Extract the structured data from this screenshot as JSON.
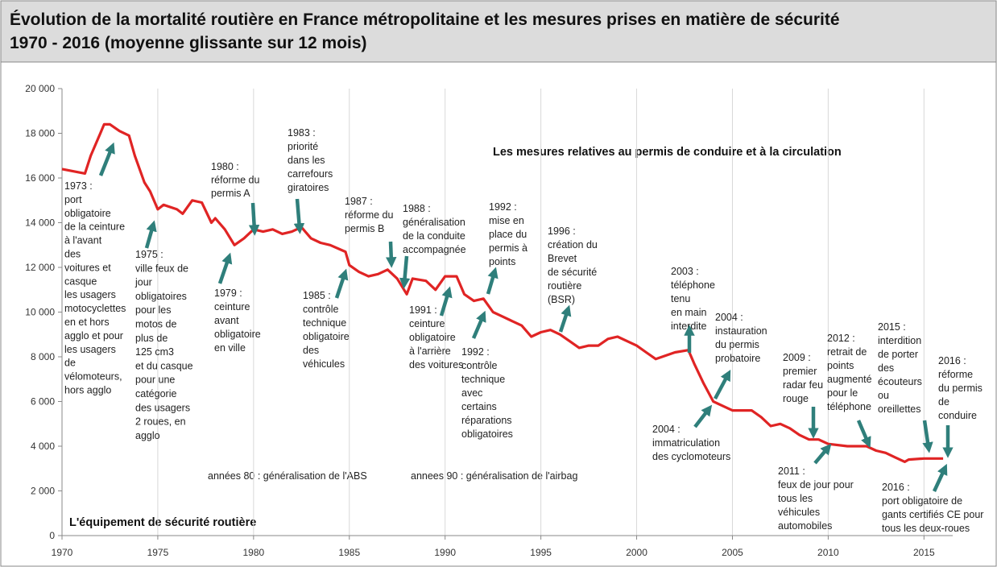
{
  "chart_data": {
    "type": "line",
    "title": "Évolution de la mortalité routière en France métropolitaine et les mesures prises en matière de sécurité",
    "subtitle": "1970 - 2016 (moyenne glissante sur 12 mois)",
    "color": "#e02424",
    "x": [
      1970,
      1971.2,
      1971.5,
      1972,
      1972.2,
      1972.5,
      1973,
      1973.5,
      1973.8,
      1974.3,
      1974.6,
      1975,
      1975.3,
      1976,
      1976.3,
      1976.8,
      1977.3,
      1977.8,
      1978,
      1978.5,
      1979,
      1979.5,
      1980,
      1980.5,
      1981,
      1981.5,
      1982,
      1982.5,
      1983,
      1983.5,
      1984,
      1984.8,
      1985,
      1985.5,
      1986,
      1986.5,
      1987,
      1987.5,
      1988,
      1988.3,
      1989,
      1989.5,
      1990,
      1990.6,
      1991,
      1991.5,
      1992,
      1992.5,
      1993,
      1994,
      1994.5,
      1995,
      1995.5,
      1996,
      1996.5,
      1997,
      1997.5,
      1998,
      1998.5,
      1999,
      1999.5,
      2000,
      2000.5,
      2001,
      2002,
      2002.7,
      2003,
      2003.5,
      2004,
      2004.5,
      2005,
      2006,
      2006.5,
      2007,
      2007.5,
      2008,
      2008.5,
      2009,
      2009.5,
      2010,
      2011,
      2012,
      2012.5,
      2013,
      2013.5,
      2014,
      2014.2,
      2015,
      2016
    ],
    "values": [
      16400,
      16200,
      17000,
      18000,
      18400,
      18400,
      18100,
      17900,
      17000,
      15800,
      15400,
      14600,
      14800,
      14600,
      14400,
      15000,
      14900,
      14000,
      14200,
      13700,
      13000,
      13300,
      13700,
      13600,
      13700,
      13500,
      13600,
      13800,
      13300,
      13100,
      13000,
      12700,
      12100,
      11800,
      11600,
      11700,
      11900,
      11500,
      10800,
      11500,
      11400,
      11000,
      11600,
      11600,
      10800,
      10500,
      10600,
      10000,
      9800,
      9400,
      8900,
      9100,
      9200,
      9000,
      8700,
      8400,
      8500,
      8500,
      8800,
      8900,
      8700,
      8500,
      8200,
      7900,
      8200,
      8300,
      7700,
      6800,
      6000,
      5800,
      5600,
      5600,
      5300,
      4900,
      5000,
      4800,
      4500,
      4300,
      4300,
      4100,
      4000,
      4000,
      3800,
      3700,
      3500,
      3300,
      3400,
      3450,
      3450
    ],
    "xlim": [
      1970,
      2016.5
    ],
    "xticks": [
      1970,
      1975,
      1980,
      1985,
      1990,
      1995,
      2000,
      2005,
      2010,
      2015
    ],
    "ylim": [
      0,
      20000
    ],
    "yticks": [
      {
        "value": 0,
        "label": "0"
      },
      {
        "value": 2000,
        "label": "2 000"
      },
      {
        "value": 4000,
        "label": "4 000"
      },
      {
        "value": 6000,
        "label": "6 000"
      },
      {
        "value": 8000,
        "label": "8 000"
      },
      {
        "value": 10000,
        "label": "10 000"
      },
      {
        "value": 12000,
        "label": "12 000"
      },
      {
        "value": 14000,
        "label": "14 000"
      },
      {
        "value": 16000,
        "label": "16 000"
      },
      {
        "value": 18000,
        "label": "18 000"
      },
      {
        "value": 20000,
        "label": "20 000"
      }
    ],
    "grid": true,
    "headings": [
      "Les mesures relatives au permis de conduire et à la circulation",
      "L'équipement de sécurité routière"
    ],
    "notes": [
      "années 80 : généralisation de l'ABS",
      "annees 90 : généralisation de l'airbag"
    ],
    "annotations": [
      [
        "1973 :",
        "port",
        "obligatoire",
        "de la ceinture",
        "à l'avant",
        "des",
        "voitures et",
        "casque",
        "les usagers",
        "motocyclettes",
        "en et hors",
        "agglo et pour",
        "les usagers",
        "de",
        "vélomoteurs,",
        "hors agglo"
      ],
      [
        "1975 :",
        "ville feux de",
        "jour",
        "obligatoires",
        "pour les",
        "motos de",
        "plus de",
        "125 cm3",
        "et du casque",
        "pour une",
        "catégorie",
        "des usagers",
        "2 roues, en",
        "agglo"
      ],
      [
        "1979 :",
        "ceinture",
        "avant",
        "obligatoire",
        "en ville"
      ],
      [
        "1980 :",
        "réforme du",
        "permis A"
      ],
      [
        "1983 :",
        "priorité",
        "dans les",
        "carrefours",
        "giratoires"
      ],
      [
        "1985 :",
        "contrôle",
        "technique",
        "obligatoire",
        "des",
        "véhicules"
      ],
      [
        "1987 :",
        "réforme du",
        "permis B"
      ],
      [
        "1988 :",
        "généralisation",
        "de la conduite",
        "accompagnée"
      ],
      [
        "1991 :",
        "ceinture",
        "obligatoire",
        "à l'arrière",
        "des voitures"
      ],
      [
        "1992 :",
        "contrôle",
        "technique",
        "avec",
        "certains",
        "réparations",
        "obligatoires"
      ],
      [
        "1992 :",
        "mise en",
        "place du",
        "permis à",
        "points"
      ],
      [
        "1996 :",
        "création du",
        "Brevet",
        "de sécurité",
        "routière",
        "(BSR)"
      ],
      [
        "2003 :",
        "téléphone",
        "tenu",
        "en main",
        "interdite"
      ],
      [
        "2004 :",
        "instauration",
        "du permis",
        "probatoire"
      ],
      [
        "2004 :",
        "immatriculation",
        "des cyclomoteurs"
      ],
      [
        "2009 :",
        "premier",
        "radar feu",
        "rouge"
      ],
      [
        "2011 :",
        "feux de jour pour",
        "tous les",
        "véhicules",
        "automobiles"
      ],
      [
        "2012 :",
        "retrait de",
        "points",
        "augmenté",
        "pour le",
        "téléphone"
      ],
      [
        "2015 :",
        "interdition",
        "de porter",
        "des",
        "écouteurs",
        "ou",
        "oreillettes"
      ],
      [
        "2016 :",
        "réforme",
        "du permis",
        "de",
        "conduire"
      ],
      [
        "2016 :",
        "port obligatoire de",
        "gants certifiés CE pour",
        "tous les deux-roues"
      ]
    ]
  }
}
